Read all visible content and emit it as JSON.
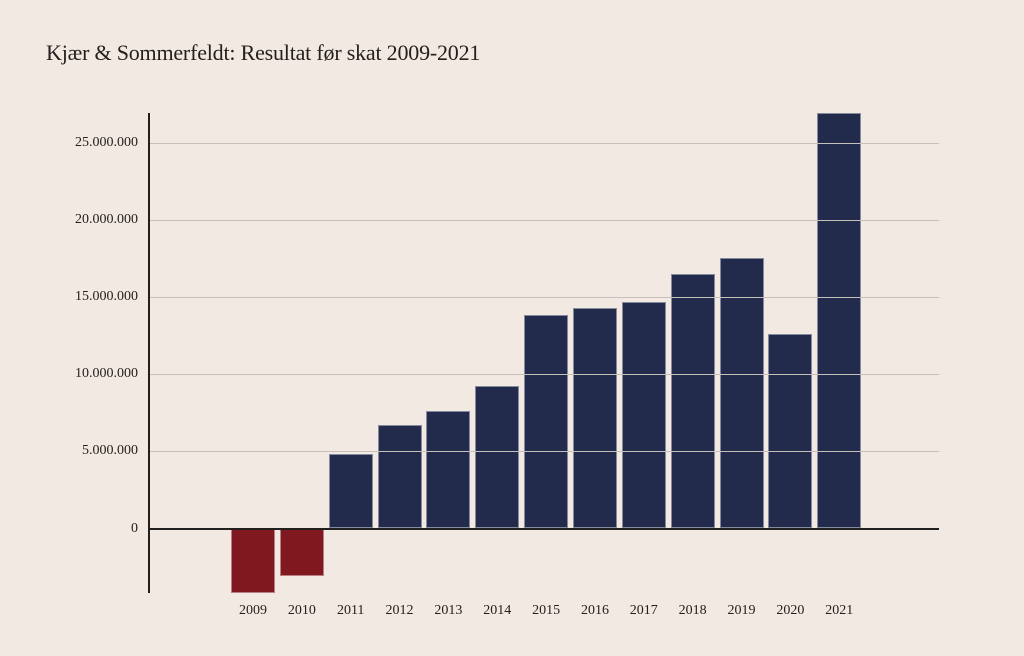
{
  "chart_data": {
    "type": "bar",
    "title": "Kjær & Sommerfeldt: Resultat før skat 2009-2021",
    "xlabel": "",
    "ylabel": "",
    "categories": [
      "2009",
      "2010",
      "2011",
      "2012",
      "2013",
      "2014",
      "2015",
      "2016",
      "2017",
      "2018",
      "2019",
      "2020",
      "2021"
    ],
    "values": [
      -4200000,
      -3100000,
      4800000,
      6700000,
      7600000,
      9200000,
      13800000,
      14300000,
      14700000,
      16500000,
      17500000,
      12600000,
      26900000
    ],
    "ylim": [
      -4500000,
      27000000
    ],
    "grid": "horizontal",
    "legend": "none",
    "yticks": [
      {
        "value": 25000000,
        "label": "25.000.000"
      },
      {
        "value": 20000000,
        "label": "20.000.000"
      },
      {
        "value": 15000000,
        "label": "15.000.000"
      },
      {
        "value": 10000000,
        "label": "10.000.000"
      },
      {
        "value": 5000000,
        "label": "5.000.000"
      },
      {
        "value": 0,
        "label": "0"
      }
    ],
    "colors": {
      "positive_bar": "#232b4d",
      "negative_bar": "#7f191f",
      "background": "#f2e9e3",
      "gridline": "#c7c0ba",
      "axis": "#22201e",
      "text": "#25201d"
    }
  }
}
